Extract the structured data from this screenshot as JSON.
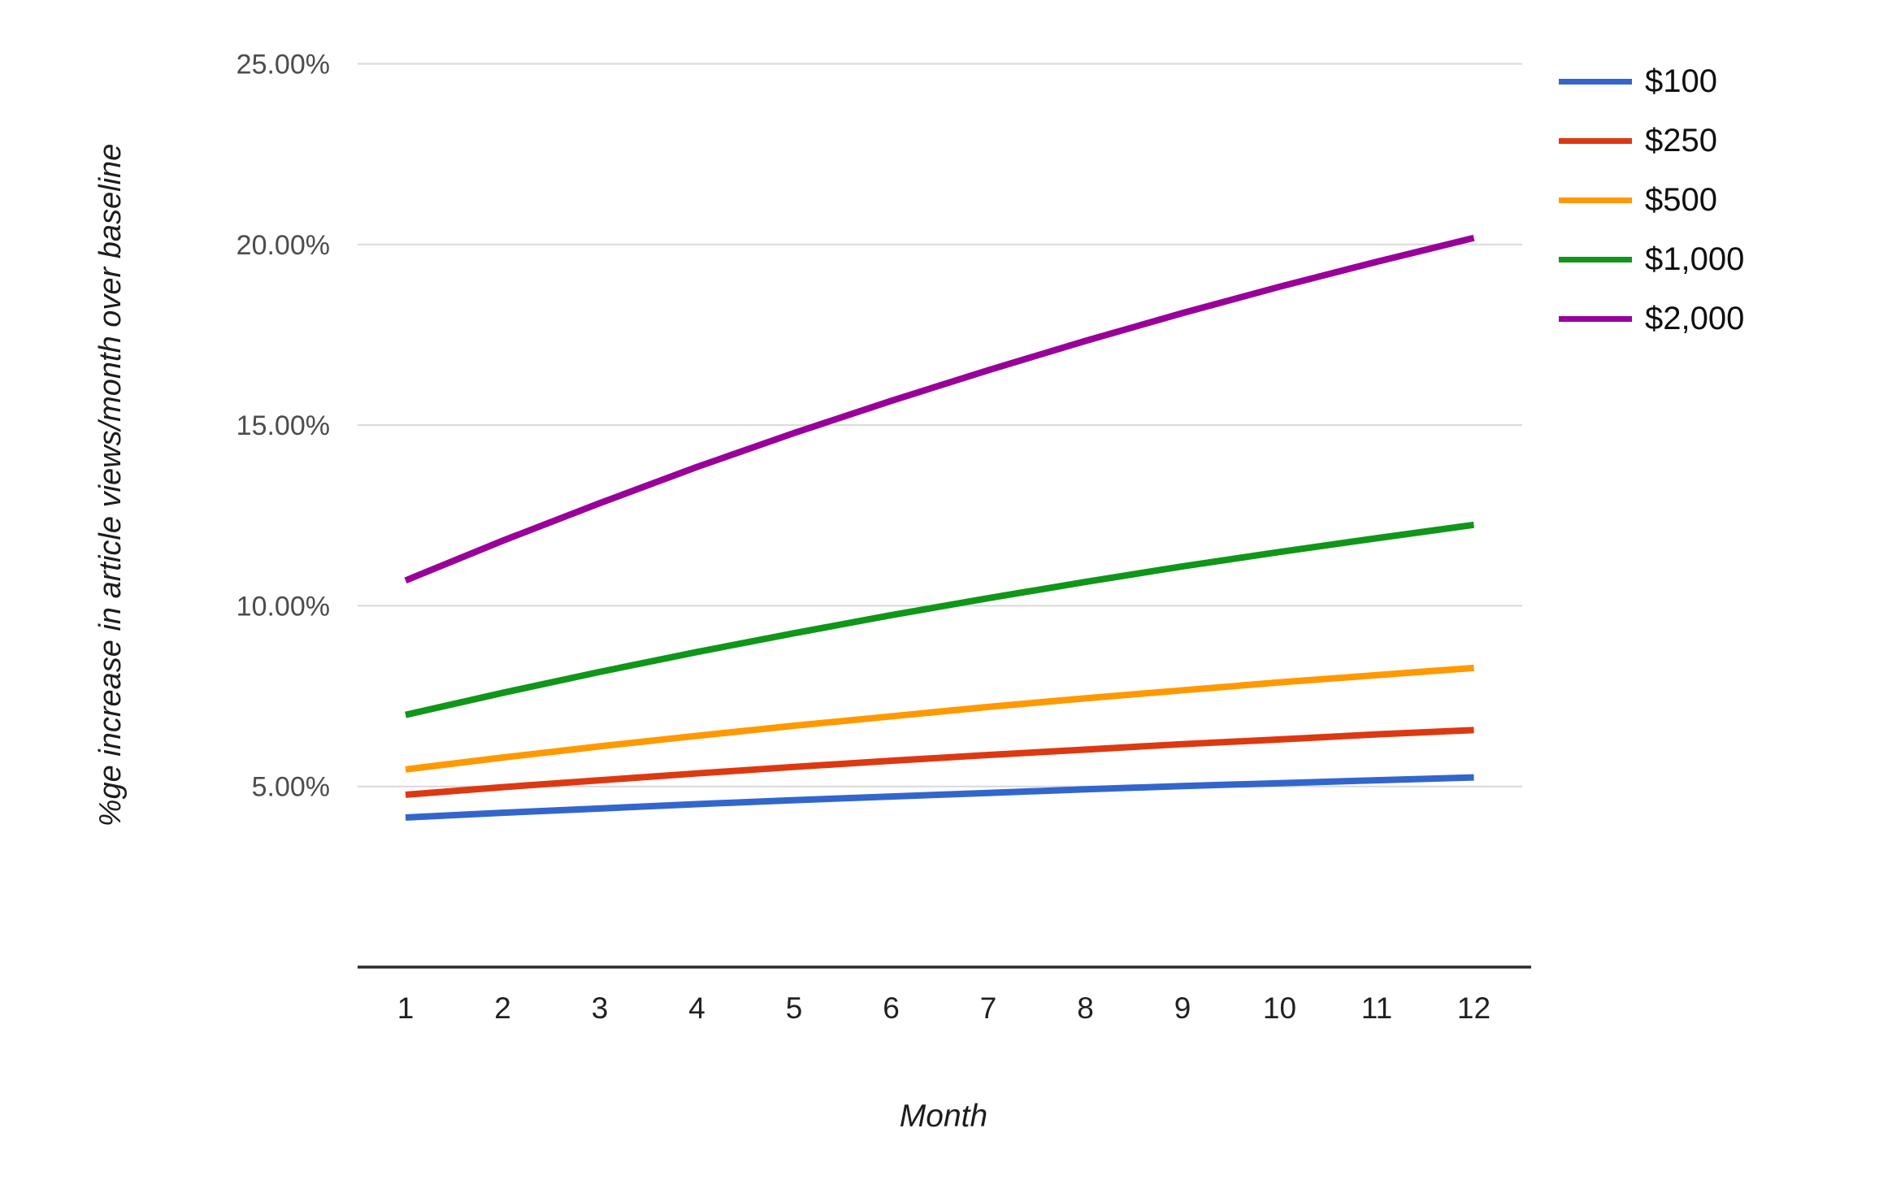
{
  "chart_data": {
    "type": "line",
    "title": "",
    "xlabel": "Month",
    "ylabel": "%ge increase in article views/month over baseline",
    "x": [
      1,
      2,
      3,
      4,
      5,
      6,
      7,
      8,
      9,
      10,
      11,
      12
    ],
    "x_tick_labels": [
      "1",
      "2",
      "3",
      "4",
      "5",
      "6",
      "7",
      "8",
      "9",
      "10",
      "11",
      "12"
    ],
    "y_ticks": [
      {
        "value": 5,
        "label": "5.00%"
      },
      {
        "value": 10,
        "label": "10.00%"
      },
      {
        "value": 15,
        "label": "15.00%"
      },
      {
        "value": 20,
        "label": "20.00%"
      },
      {
        "value": 25,
        "label": "25.00%"
      }
    ],
    "ylim": [
      0,
      26.8
    ],
    "grid": true,
    "legend_position": "right",
    "series": [
      {
        "name": "$100",
        "color": "#3366CC",
        "values": [
          4.14,
          4.27,
          4.39,
          4.51,
          4.62,
          4.72,
          4.82,
          4.92,
          5.01,
          5.09,
          5.17,
          5.25
        ]
      },
      {
        "name": "$250",
        "color": "#DC3912",
        "values": [
          4.77,
          4.98,
          5.17,
          5.36,
          5.54,
          5.71,
          5.87,
          6.02,
          6.17,
          6.3,
          6.44,
          6.56
        ]
      },
      {
        "name": "$500",
        "color": "#FF9900",
        "values": [
          5.47,
          5.8,
          6.11,
          6.4,
          6.68,
          6.94,
          7.2,
          7.44,
          7.66,
          7.88,
          8.08,
          8.28
        ]
      },
      {
        "name": "$1,000",
        "color": "#109618",
        "values": [
          6.98,
          7.59,
          8.17,
          8.72,
          9.24,
          9.74,
          10.21,
          10.66,
          11.09,
          11.49,
          11.87,
          12.24
        ]
      },
      {
        "name": "$2,000",
        "color": "#990099",
        "values": [
          10.7,
          11.8,
          12.84,
          13.84,
          14.78,
          15.67,
          16.52,
          17.33,
          18.1,
          18.83,
          19.52,
          20.18
        ]
      }
    ],
    "axis_color": "#2b2b2b",
    "gridline_color": "#d9d9d9",
    "y_tick_label_color": "#4c4c4c",
    "x_tick_label_color": "#212121"
  }
}
